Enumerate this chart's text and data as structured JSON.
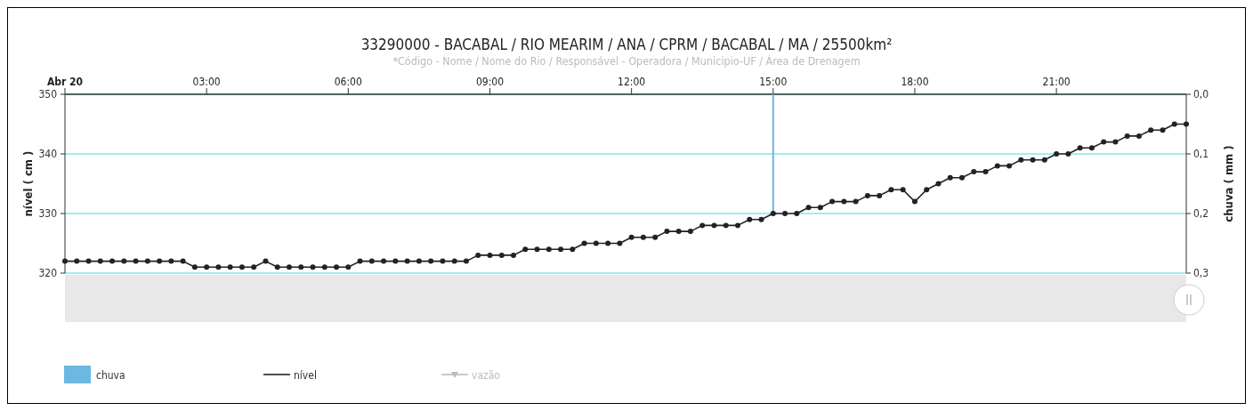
{
  "chart_data": {
    "type": "line",
    "title": "33290000 - BACABAL / RIO MEARIM / ANA / CPRM / BACABAL / MA / 25500km²",
    "subtitle": "*Código - Nome / Nome do Rio / Responsável - Operadora / Municipio-UF / Área de Drenagem",
    "ylabel": "nível ( cm )",
    "y2label": "chuva ( mm )",
    "x": [
      0,
      0.25,
      0.5,
      0.75,
      1,
      1.25,
      1.5,
      1.75,
      2,
      2.25,
      2.5,
      2.75,
      3,
      3.25,
      3.5,
      3.75,
      4,
      4.25,
      4.5,
      4.75,
      5,
      5.25,
      5.5,
      5.75,
      6,
      6.25,
      6.5,
      6.75,
      7,
      7.25,
      7.5,
      7.75,
      8,
      8.25,
      8.5,
      8.75,
      9,
      9.25,
      9.5,
      9.75,
      10,
      10.25,
      10.5,
      10.75,
      11,
      11.25,
      11.5,
      11.75,
      12,
      12.25,
      12.5,
      12.75,
      13,
      13.25,
      13.5,
      13.75,
      14,
      14.25,
      14.5,
      14.75,
      15,
      15.25,
      15.5,
      15.75,
      16,
      16.25,
      16.5,
      16.75,
      17,
      17.25,
      17.5,
      17.75,
      18,
      18.25,
      18.5,
      18.75,
      19,
      19.25,
      19.5,
      19.75,
      20,
      20.25,
      20.5,
      20.75,
      21,
      21.25,
      21.5,
      21.75,
      22,
      22.25,
      22.5,
      22.75,
      23,
      23.25,
      23.5,
      23.75
    ],
    "series": [
      {
        "name": "chuva",
        "type": "bar",
        "axis": "y2",
        "color": "#6bb8e0",
        "values": [
          null,
          null,
          null,
          null,
          null,
          null,
          null,
          null,
          null,
          null,
          null,
          null,
          null,
          null,
          null,
          null,
          null,
          null,
          null,
          null,
          null,
          null,
          null,
          null,
          null,
          null,
          null,
          null,
          null,
          null,
          null,
          null,
          null,
          null,
          null,
          null,
          null,
          null,
          null,
          null,
          null,
          null,
          null,
          null,
          null,
          null,
          null,
          null,
          null,
          null,
          null,
          null,
          null,
          null,
          null,
          null,
          null,
          null,
          null,
          null,
          0.2,
          null,
          null,
          null,
          null,
          null,
          null,
          null,
          null,
          null,
          null,
          null,
          null,
          null,
          null,
          null,
          null,
          null,
          null,
          null,
          null,
          null,
          null,
          null,
          null,
          null,
          null,
          null,
          null,
          null,
          null,
          null,
          null,
          null,
          null,
          null
        ]
      },
      {
        "name": "nível",
        "color": "#222222",
        "values": [
          322,
          322,
          322,
          322,
          322,
          322,
          322,
          322,
          322,
          322,
          322,
          321,
          321,
          321,
          321,
          321,
          321,
          322,
          321,
          321,
          321,
          321,
          321,
          321,
          321,
          322,
          322,
          322,
          322,
          322,
          322,
          322,
          322,
          322,
          322,
          323,
          323,
          323,
          323,
          324,
          324,
          324,
          324,
          324,
          325,
          325,
          325,
          325,
          326,
          326,
          326,
          327,
          327,
          327,
          328,
          328,
          328,
          328,
          329,
          329,
          330,
          330,
          330,
          331,
          331,
          332,
          332,
          332,
          333,
          333,
          334,
          334,
          332,
          334,
          335,
          336,
          336,
          337,
          337,
          338,
          338,
          339,
          339,
          339,
          340,
          340,
          341,
          341,
          342,
          342,
          343,
          343,
          344,
          344,
          345,
          345
        ]
      },
      {
        "name": "vazão",
        "type": "line",
        "color": "#bbbbbb",
        "marker": "triangle",
        "values": [
          null,
          null,
          null,
          null,
          null,
          null,
          null,
          null,
          null,
          null,
          null,
          null,
          null,
          null,
          null,
          null,
          null,
          null,
          null,
          null,
          null,
          null,
          null,
          null,
          null,
          null,
          null,
          null,
          null,
          null,
          null,
          null,
          null,
          null,
          null,
          null,
          null,
          null,
          null,
          null,
          null,
          null,
          null,
          null,
          null,
          null,
          null,
          null,
          null,
          null,
          null,
          null,
          null,
          null,
          null,
          null,
          null,
          null,
          null,
          null,
          null,
          null,
          null,
          null,
          null,
          null,
          null,
          null,
          null,
          null,
          null,
          null,
          null,
          null,
          null,
          null,
          null,
          null,
          null,
          null,
          null,
          null,
          null,
          null,
          null,
          null,
          null,
          null,
          null,
          null,
          null,
          null,
          null,
          null,
          null,
          null
        ]
      }
    ],
    "xlim": [
      0,
      23.75
    ],
    "xticks": [
      {
        "value": 0,
        "label": "Abr 20"
      },
      {
        "value": 3,
        "label": "03:00"
      },
      {
        "value": 6,
        "label": "06:00"
      },
      {
        "value": 9,
        "label": "09:00"
      },
      {
        "value": 12,
        "label": "12:00"
      },
      {
        "value": 15,
        "label": "15:00"
      },
      {
        "value": 18,
        "label": "18:00"
      },
      {
        "value": 21,
        "label": "21:00"
      }
    ],
    "ylim": [
      320,
      350
    ],
    "yticks": [
      320,
      330,
      340,
      350
    ],
    "y2lim": [
      0.3,
      0
    ],
    "y2ticks": [
      {
        "value": 0,
        "label": "0,0"
      },
      {
        "value": 0.1,
        "label": "0,1"
      },
      {
        "value": 0.2,
        "label": "0,2"
      },
      {
        "value": 0.3,
        "label": "0,3"
      }
    ],
    "grid": "y",
    "legend": "bottom",
    "marker": "circle"
  }
}
